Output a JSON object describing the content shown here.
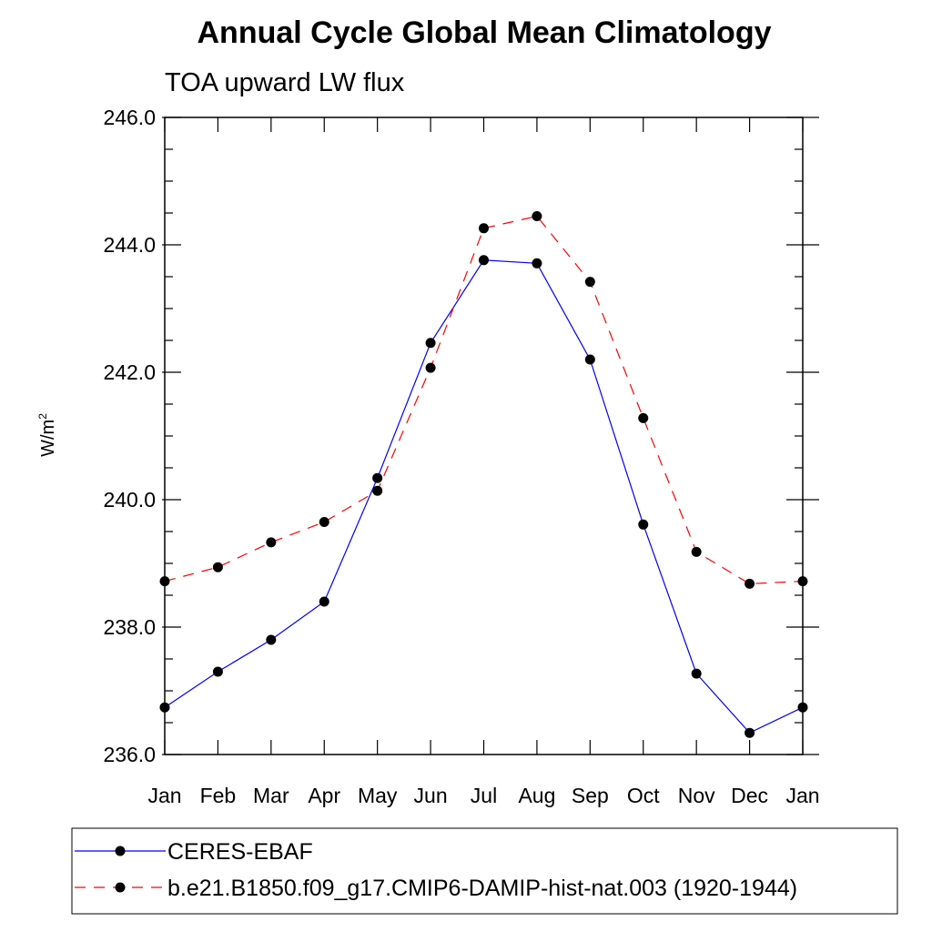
{
  "chart_data": {
    "type": "line",
    "title": "Annual Cycle Global Mean Climatology",
    "subtitle": "TOA upward LW flux",
    "ylabel": "W/m",
    "ylabel_sup": "2",
    "xlabel": "",
    "categories": [
      "Jan",
      "Feb",
      "Mar",
      "Apr",
      "May",
      "Jun",
      "Jul",
      "Aug",
      "Sep",
      "Oct",
      "Nov",
      "Dec",
      "Jan"
    ],
    "ylim": [
      236.0,
      246.0
    ],
    "yticks": [
      "236.0",
      "238.0",
      "240.0",
      "242.0",
      "244.0",
      "246.0"
    ],
    "grid": false,
    "legend_position": "bottom",
    "series": [
      {
        "name": "CERES-EBAF",
        "color": "#0000ff",
        "line_style": "solid",
        "marker": "filled-circle",
        "values": [
          236.74,
          237.3,
          237.8,
          238.4,
          240.34,
          242.46,
          243.76,
          243.71,
          242.2,
          239.61,
          237.27,
          236.34,
          236.74
        ]
      },
      {
        "name": "b.e21.B1850.f09_g17.CMIP6-DAMIP-hist-nat.003 (1920-1944)",
        "color": "#ff0000",
        "line_style": "dashed",
        "marker": "filled-circle",
        "values": [
          238.72,
          238.94,
          239.33,
          239.65,
          240.14,
          242.07,
          244.26,
          244.45,
          243.42,
          241.28,
          239.18,
          238.68,
          238.72
        ]
      }
    ]
  }
}
